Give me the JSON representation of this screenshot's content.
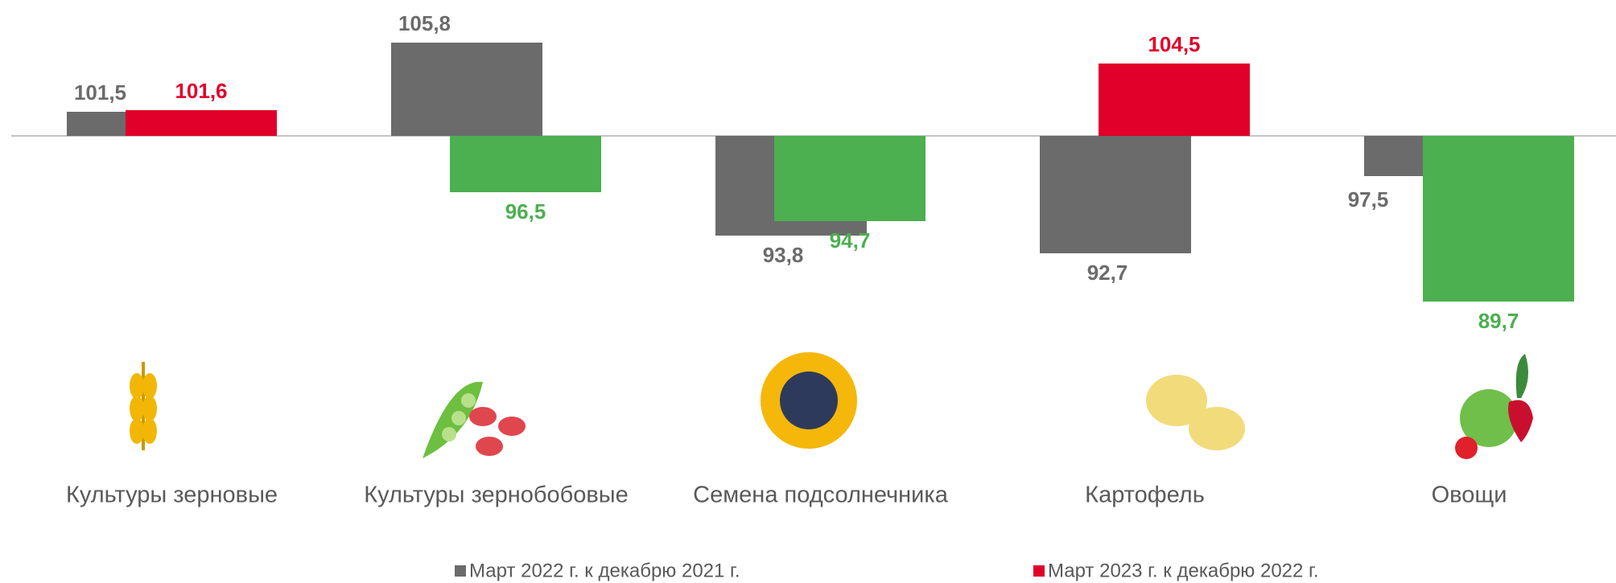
{
  "chart_data": {
    "type": "bar",
    "categories": [
      "Культуры зерновые",
      "Культуры зернобобовые",
      "Семена подсолнечника",
      "Картофель",
      "Овощи"
    ],
    "baseline": 100,
    "ylim": [
      88,
      107
    ],
    "series": [
      {
        "name": "Март 2022 г. к декабрю 2021 г.",
        "color": "#6b6b6b",
        "values": [
          101.5,
          105.8,
          93.8,
          92.7,
          97.5
        ],
        "value_labels": [
          "101,5",
          "105,8",
          "93,8",
          "92,7",
          "97,5"
        ]
      },
      {
        "name": "Март 2023 г. к декабрю 2022 г.",
        "color": "#e0002a",
        "colors": [
          "#e0002a",
          "#4caf50",
          "#4caf50",
          "#e0002a",
          "#4caf50"
        ],
        "values": [
          101.6,
          96.5,
          94.7,
          104.5,
          89.7
        ],
        "value_labels": [
          "101,6",
          "96,5",
          "94,7",
          "104,5",
          "89,7"
        ]
      }
    ]
  }
}
